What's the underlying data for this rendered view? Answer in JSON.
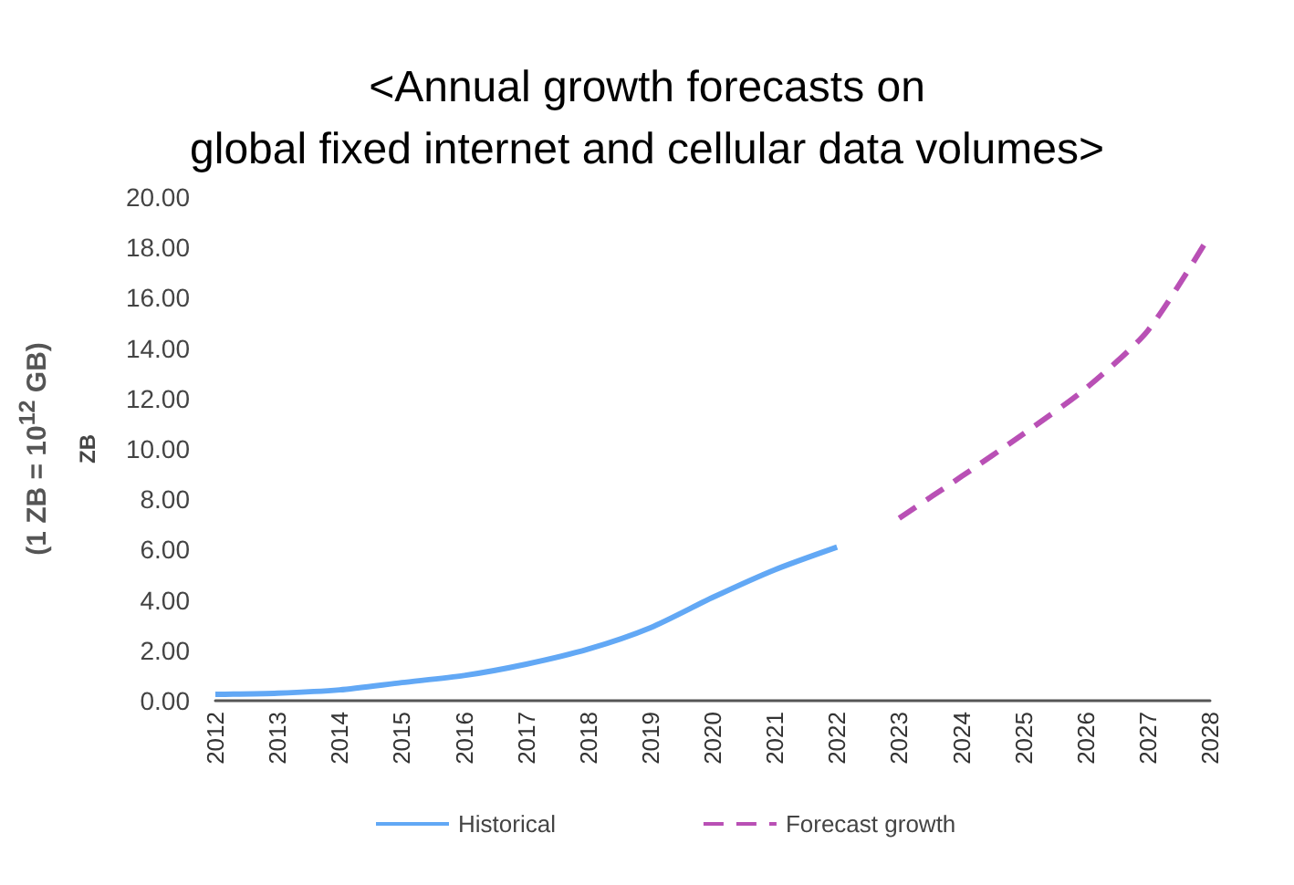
{
  "chart_data": {
    "type": "line",
    "title": "<Annual growth forecasts on\nglobal fixed internet and cellular data volumes>",
    "ylabel": "ZB",
    "annotations": [
      "(1 ZB = 10$^{12}$ GB)"
    ],
    "categories": [
      "2012",
      "2013",
      "2014",
      "2015",
      "2016",
      "2017",
      "2018",
      "2019",
      "2020",
      "2021",
      "2022",
      "2023",
      "2024",
      "2025",
      "2026",
      "2027",
      "2028"
    ],
    "series": [
      {
        "name": "Historical",
        "color": "#62a8f5",
        "line_style": "solid",
        "values": [
          0.25,
          0.3,
          0.43,
          0.72,
          1.0,
          1.45,
          2.05,
          2.9,
          4.1,
          5.2,
          6.1,
          null,
          null,
          null,
          null,
          null,
          null
        ]
      },
      {
        "name": "Forecast growth",
        "color": "#b950b5",
        "line_style": "dashed",
        "values": [
          null,
          null,
          null,
          null,
          null,
          null,
          null,
          null,
          null,
          null,
          null,
          7.25,
          8.9,
          10.6,
          12.4,
          14.7,
          18.5
        ]
      }
    ],
    "ylim": [
      0,
      20
    ],
    "yticks": [
      {
        "value": 0,
        "label": "0.00"
      },
      {
        "value": 2,
        "label": "2.00"
      },
      {
        "value": 4,
        "label": "4.00"
      },
      {
        "value": 6,
        "label": "6.00"
      },
      {
        "value": 8,
        "label": "8.00"
      },
      {
        "value": 10,
        "label": "10.00"
      },
      {
        "value": 12,
        "label": "12.00"
      },
      {
        "value": 14,
        "label": "14.00"
      },
      {
        "value": 16,
        "label": "16.00"
      },
      {
        "value": 18,
        "label": "18.00"
      },
      {
        "value": 20,
        "label": "20.00"
      }
    ],
    "grid": false,
    "legend": "bottom",
    "marker": "none"
  }
}
